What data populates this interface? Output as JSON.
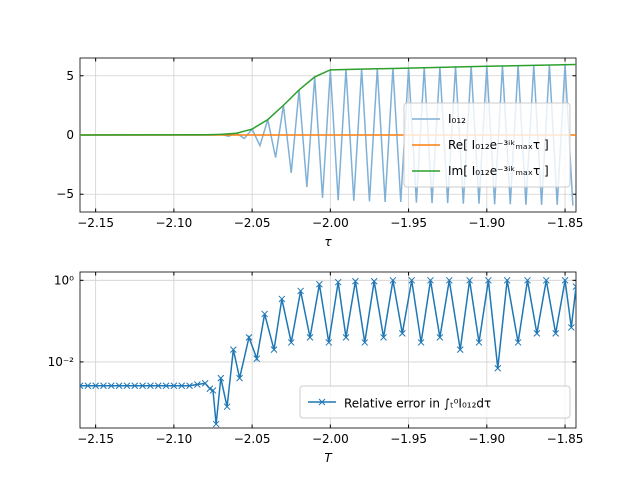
{
  "chart_data": [
    {
      "type": "line",
      "xlabel": "τ",
      "xlim": [
        -2.16,
        -1.843
      ],
      "xticks": [
        {
          "value": -2.15,
          "label": "−2.15"
        },
        {
          "value": -2.1,
          "label": "−2.10"
        },
        {
          "value": -2.05,
          "label": "−2.05"
        },
        {
          "value": -2.0,
          "label": "−2.00"
        },
        {
          "value": -1.95,
          "label": "−1.95"
        },
        {
          "value": -1.9,
          "label": "−1.90"
        },
        {
          "value": -1.85,
          "label": "−1.85"
        }
      ],
      "ylim": [
        -6.5,
        6.5
      ],
      "yticks": [
        {
          "value": -5,
          "label": "−5"
        },
        0,
        5
      ],
      "grid": true,
      "legend": "center right",
      "series": [
        {
          "name": "I₀₁₂",
          "color": "#7fb1d8",
          "x": [
            -2.16,
            -2.075,
            -2.07,
            -2.065,
            -2.06,
            -2.055,
            -2.05,
            -2.045,
            -2.04,
            -2.035,
            -2.03,
            -2.025,
            -2.02,
            -2.015,
            -2.01,
            -2.005,
            -2.0,
            -1.995,
            -1.99,
            -1.985,
            -1.98,
            -1.975,
            -1.97,
            -1.965,
            -1.96,
            -1.955,
            -1.95,
            -1.945,
            -1.94,
            -1.935,
            -1.93,
            -1.925,
            -1.92,
            -1.915,
            -1.91,
            -1.905,
            -1.9,
            -1.895,
            -1.89,
            -1.885,
            -1.88,
            -1.875,
            -1.87,
            -1.865,
            -1.86,
            -1.855,
            -1.85,
            -1.845
          ],
          "values": [
            0,
            0,
            0.05,
            -0.1,
            0.15,
            -0.3,
            0.5,
            -0.9,
            1.3,
            -1.9,
            2.5,
            -3.2,
            3.8,
            -4.4,
            4.9,
            -5.3,
            5.5,
            -5.5,
            5.55,
            -5.55,
            5.6,
            -5.6,
            5.6,
            -5.65,
            5.65,
            -5.65,
            5.7,
            -5.7,
            5.7,
            -5.75,
            5.75,
            -5.75,
            5.8,
            -5.8,
            5.8,
            -5.8,
            5.85,
            -5.85,
            5.85,
            -5.85,
            5.9,
            -5.9,
            5.9,
            -5.9,
            5.9,
            -5.9,
            5.95,
            -5.95
          ]
        },
        {
          "name": "Re[ I₀₁₂e⁻³ⁱᵏₘₐₓτ ]",
          "color": "#ff7f0e",
          "x": [
            -2.16,
            -1.843
          ],
          "values": [
            0,
            0
          ]
        },
        {
          "name": "Im[ I₀₁₂e⁻³ⁱᵏₘₐₓτ ]",
          "color": "#2ca02c",
          "x": [
            -2.16,
            -2.08,
            -2.07,
            -2.06,
            -2.05,
            -2.04,
            -2.03,
            -2.02,
            -2.01,
            -2.0,
            -1.95,
            -1.9,
            -1.843
          ],
          "values": [
            0,
            0.02,
            0.05,
            0.15,
            0.5,
            1.3,
            2.5,
            3.8,
            4.9,
            5.5,
            5.65,
            5.8,
            5.95
          ]
        }
      ]
    },
    {
      "type": "line",
      "xlabel": "T",
      "xlim": [
        -2.16,
        -1.843
      ],
      "xticks": [
        {
          "value": -2.15,
          "label": "−2.15"
        },
        {
          "value": -2.1,
          "label": "−2.10"
        },
        {
          "value": -2.05,
          "label": "−2.05"
        },
        {
          "value": -2.0,
          "label": "−2.00"
        },
        {
          "value": -1.95,
          "label": "−1.95"
        },
        {
          "value": -1.9,
          "label": "−1.90"
        },
        {
          "value": -1.85,
          "label": "−1.85"
        }
      ],
      "ylim": [
        0.00024,
        1.6
      ],
      "log_y": true,
      "yticks": [
        {
          "value": 0.01,
          "label": "10⁻²"
        },
        {
          "value": 1,
          "label": "10⁰"
        }
      ],
      "grid": true,
      "legend": "lower right",
      "series": [
        {
          "name": "Relative error in ∫ₜ⁰I₀₁₂dτ",
          "color": "#1f77b4",
          "marker": "x",
          "x": [
            -2.16,
            -2.155,
            -2.15,
            -2.145,
            -2.14,
            -2.135,
            -2.13,
            -2.125,
            -2.12,
            -2.115,
            -2.11,
            -2.105,
            -2.1,
            -2.095,
            -2.09,
            -2.085,
            -2.08,
            -2.077,
            -2.075,
            -2.073,
            -2.07,
            -2.066,
            -2.062,
            -2.058,
            -2.052,
            -2.047,
            -2.042,
            -2.036,
            -2.031,
            -2.025,
            -2.019,
            -2.013,
            -2.007,
            -2.001,
            -1.995,
            -1.99,
            -1.984,
            -1.978,
            -1.972,
            -1.966,
            -1.96,
            -1.954,
            -1.948,
            -1.942,
            -1.936,
            -1.93,
            -1.924,
            -1.917,
            -1.911,
            -1.905,
            -1.899,
            -1.893,
            -1.887,
            -1.88,
            -1.874,
            -1.868,
            -1.862,
            -1.856,
            -1.85,
            -1.846,
            -1.843
          ],
          "values": [
            0.0026,
            0.0026,
            0.0026,
            0.0026,
            0.0026,
            0.0026,
            0.0026,
            0.0026,
            0.0026,
            0.0026,
            0.0026,
            0.0026,
            0.0026,
            0.0026,
            0.0026,
            0.0028,
            0.003,
            0.0022,
            0.002,
            0.0003,
            0.004,
            0.0008,
            0.02,
            0.004,
            0.04,
            0.012,
            0.15,
            0.02,
            0.35,
            0.03,
            0.55,
            0.04,
            0.8,
            0.03,
            0.9,
            0.04,
            0.95,
            0.03,
            0.95,
            0.04,
            1.0,
            0.05,
            1.0,
            0.03,
            1.0,
            0.04,
            1.0,
            0.02,
            1.0,
            0.03,
            1.0,
            0.007,
            1.0,
            0.03,
            1.0,
            0.05,
            1.0,
            0.05,
            1.0,
            0.07,
            0.7
          ]
        }
      ]
    }
  ]
}
